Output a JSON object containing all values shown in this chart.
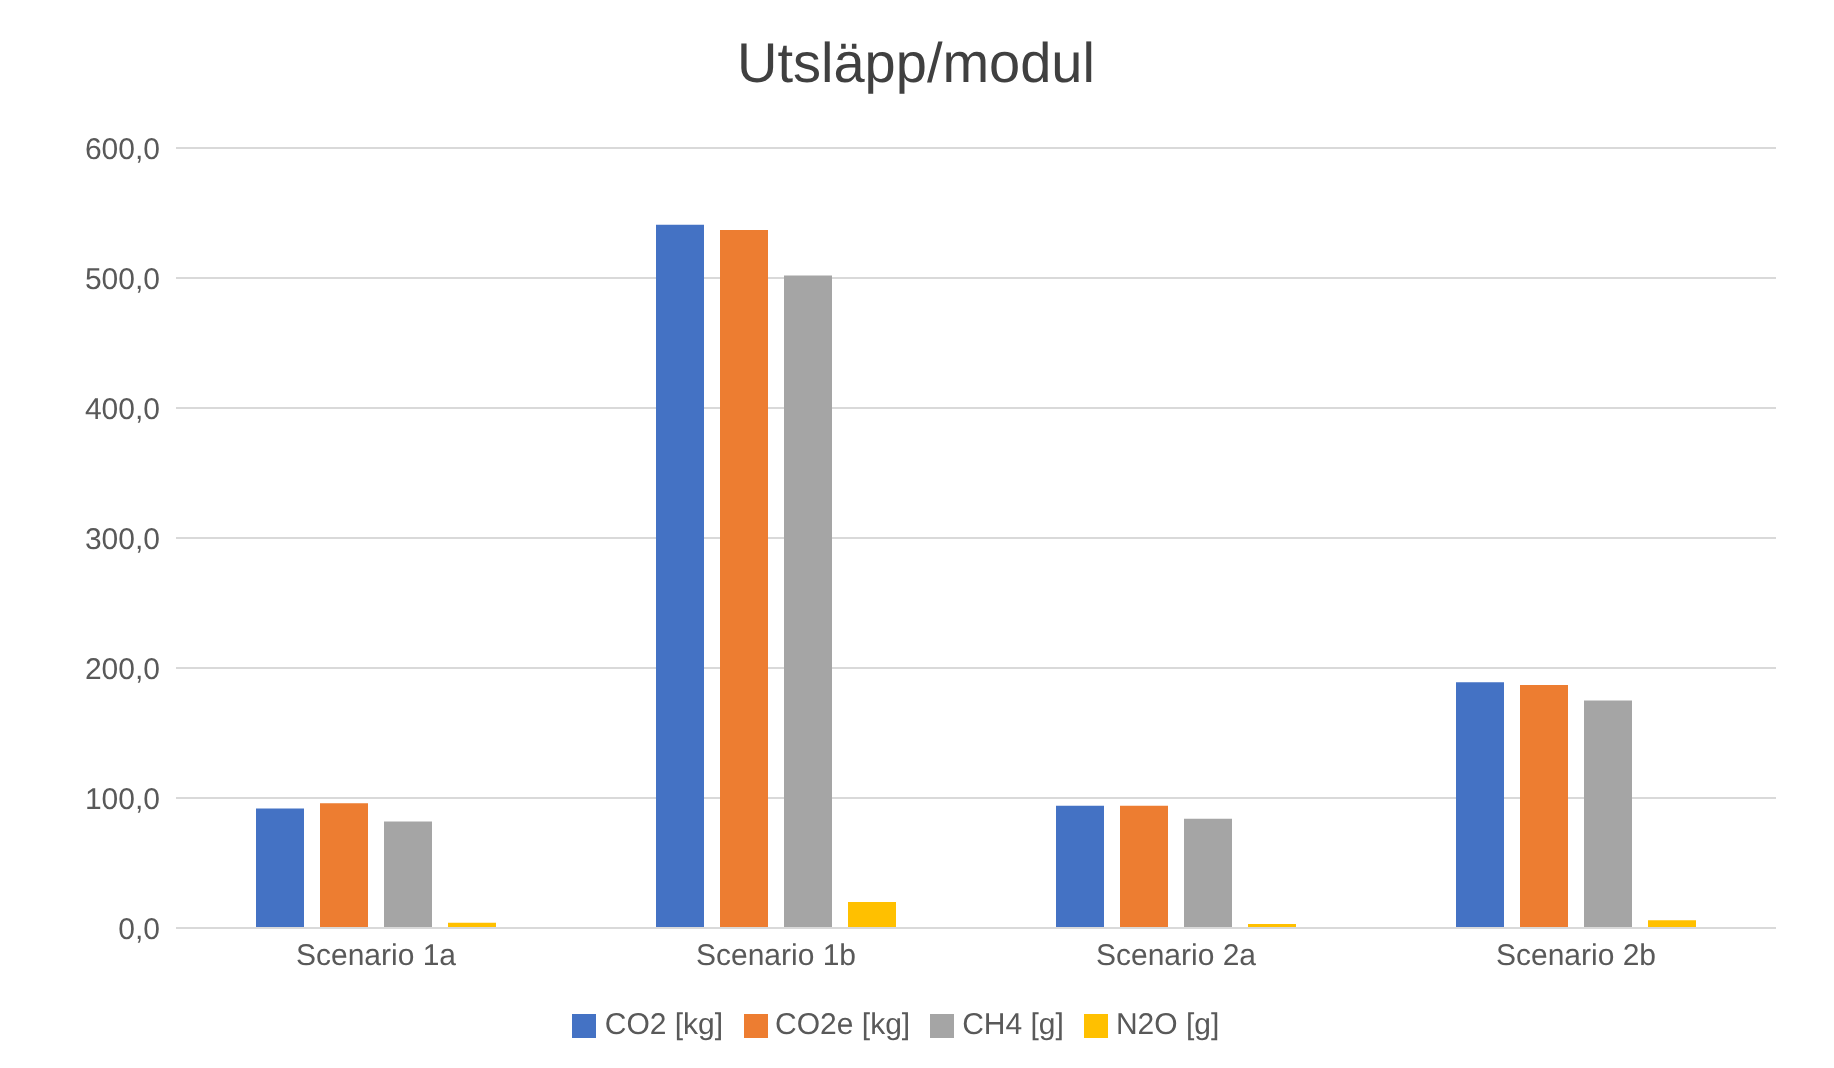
{
  "chart_data": {
    "type": "bar",
    "title": "Utsläpp/modul",
    "categories": [
      "Scenario 1a",
      "Scenario 1b",
      "Scenario 2a",
      "Scenario 2b"
    ],
    "series": [
      {
        "name": "CO2 [kg]",
        "color": "#4472c4",
        "values": [
          92,
          541,
          94,
          189
        ]
      },
      {
        "name": "CO2e [kg]",
        "color": "#ed7d31",
        "values": [
          96,
          537,
          94,
          187
        ]
      },
      {
        "name": "CH4 [g]",
        "color": "#a5a5a5",
        "values": [
          82,
          502,
          84,
          175
        ]
      },
      {
        "name": "N2O [g]",
        "color": "#ffc000",
        "values": [
          4,
          20,
          3,
          6
        ]
      }
    ],
    "ylim": [
      0,
      600
    ],
    "yticks": [
      {
        "value": 0,
        "label": "0,0"
      },
      {
        "value": 100,
        "label": "100,0"
      },
      {
        "value": 200,
        "label": "200,0"
      },
      {
        "value": 300,
        "label": "300,0"
      },
      {
        "value": 400,
        "label": "400,0"
      },
      {
        "value": 500,
        "label": "500,0"
      },
      {
        "value": 600,
        "label": "600,0"
      }
    ],
    "grid": "y",
    "legend": "bottom"
  }
}
